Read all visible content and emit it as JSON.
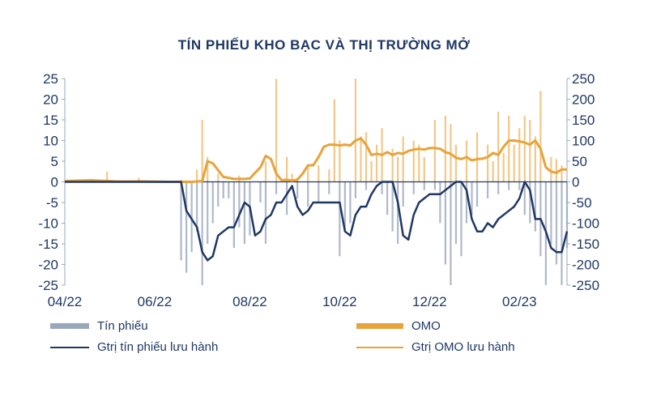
{
  "chart_data": {
    "type": "bar",
    "title": "TÍN PHIẾU KHO BẠC VÀ THỊ TRƯỜNG MỞ",
    "xlabel": "",
    "ylabel_left": "",
    "ylabel_right": "",
    "x_tick_labels": [
      "04/22",
      "06/22",
      "08/22",
      "10/22",
      "12/22",
      "02/23"
    ],
    "left_axis": {
      "ylim": [
        -25,
        25
      ],
      "ticks": [
        25,
        20,
        15,
        10,
        5,
        0,
        -5,
        -10,
        -15,
        -20,
        -25
      ]
    },
    "right_axis": {
      "ylim": [
        -250,
        250
      ],
      "ticks": [
        250,
        200,
        150,
        100,
        50,
        0,
        -50,
        -100,
        -150,
        -200,
        -250
      ]
    },
    "grid": false,
    "legend_position": "bottom",
    "colors": {
      "tin_phieu_bar": "#9aa8bd",
      "omo_bar": "#e8a33a",
      "tin_phieu_line": "#1f3864",
      "omo_line": "#e8a33a",
      "axis_text": "#1f3864"
    },
    "series": [
      {
        "name": "Tín phiếu",
        "kind": "bar",
        "axis": "left",
        "x_week": [
          0,
          5,
          10,
          15,
          20,
          22,
          23,
          24,
          25,
          26,
          27,
          28,
          29,
          30,
          31,
          32,
          33,
          34,
          35,
          37,
          38,
          40,
          42,
          44,
          46,
          48,
          50,
          52,
          53,
          54,
          55,
          57,
          60,
          61,
          62,
          63,
          64,
          66,
          68,
          70,
          71,
          72,
          73,
          74,
          75,
          76,
          77,
          78,
          80,
          82,
          84,
          86,
          87,
          88,
          89,
          90,
          91,
          92,
          93,
          94,
          95
        ],
        "values": [
          0,
          0,
          0,
          0,
          0,
          -19,
          -22,
          -17,
          -12,
          -25,
          -15,
          -10,
          -6,
          -4,
          -4,
          -16,
          -11,
          -15,
          -13,
          -5,
          -15,
          -3,
          -8,
          -4,
          -6,
          -5,
          -3,
          -18,
          -12,
          -10,
          -4,
          -2,
          -3,
          -8,
          -12,
          -15,
          -6,
          -3,
          -2,
          -2,
          -10,
          -20,
          -25,
          -15,
          -18,
          -10,
          -8,
          -6,
          -4,
          -3,
          -2,
          -2,
          -8,
          -10,
          -12,
          -18,
          -25,
          -15,
          -20,
          -25,
          -16
        ]
      },
      {
        "name": "OMO",
        "kind": "bar",
        "axis": "right",
        "x_week": [
          3,
          8,
          14,
          22,
          25,
          26,
          27,
          29,
          33,
          38,
          40,
          42,
          43,
          44,
          46,
          48,
          50,
          51,
          52,
          55,
          56,
          57,
          58,
          59,
          60,
          62,
          63,
          64,
          66,
          67,
          68,
          70,
          72,
          73,
          74,
          76,
          78,
          80,
          81,
          82,
          83,
          84,
          85,
          86,
          87,
          88,
          89,
          90,
          92,
          93,
          94
        ],
        "values": [
          5,
          25,
          10,
          5,
          30,
          150,
          60,
          20,
          15,
          50,
          250,
          60,
          20,
          10,
          40,
          40,
          30,
          200,
          100,
          250,
          110,
          120,
          50,
          90,
          130,
          80,
          60,
          110,
          100,
          90,
          60,
          150,
          160,
          140,
          90,
          100,
          120,
          90,
          50,
          170,
          70,
          160,
          90,
          130,
          160,
          150,
          110,
          220,
          60,
          55,
          40
        ]
      },
      {
        "name": "Gtrị tín phiếu lưu hành",
        "kind": "line",
        "axis": "left",
        "x_week": [
          0,
          5,
          10,
          15,
          20,
          22,
          23,
          24,
          25,
          26,
          27,
          28,
          29,
          30,
          31,
          32,
          33,
          34,
          35,
          36,
          37,
          38,
          39,
          40,
          41,
          42,
          43,
          44,
          45,
          46,
          47,
          48,
          49,
          50,
          51,
          52,
          53,
          54,
          55,
          56,
          57,
          58,
          59,
          60,
          61,
          62,
          63,
          64,
          65,
          66,
          67,
          68,
          69,
          70,
          71,
          72,
          73,
          74,
          75,
          76,
          77,
          78,
          79,
          80,
          81,
          82,
          83,
          84,
          85,
          86,
          87,
          88,
          89,
          90,
          91,
          92,
          93,
          94,
          95
        ],
        "values": [
          0,
          0,
          0,
          0,
          0,
          0,
          -7,
          -9,
          -11,
          -17,
          -19,
          -18,
          -13,
          -12,
          -11,
          -11,
          -8,
          -5,
          -6,
          -13,
          -12,
          -9,
          -8,
          -5,
          -5,
          -3,
          -1,
          -6,
          -8,
          -7,
          -5,
          -5,
          -5,
          -5,
          -5,
          -5,
          -12,
          -13,
          -8,
          -6,
          -6,
          -3,
          -1,
          0,
          0,
          0,
          -5,
          -13,
          -14,
          -8,
          -5,
          -4,
          -3,
          -3,
          -3,
          -2,
          -1,
          0,
          0,
          -2,
          -9,
          -12,
          -12,
          -10,
          -11,
          -9,
          -8,
          -7,
          -6,
          -4,
          0,
          -2,
          -9,
          -9,
          -12,
          -16,
          -17,
          -17,
          -12
        ]
      },
      {
        "name": "Gtrị OMO lưu hành",
        "kind": "line",
        "axis": "right",
        "x_week": [
          0,
          5,
          10,
          15,
          20,
          22,
          24,
          26,
          27,
          28,
          30,
          32,
          34,
          35,
          36,
          37,
          38,
          39,
          40,
          41,
          42,
          43,
          44,
          45,
          46,
          47,
          48,
          49,
          50,
          51,
          52,
          53,
          54,
          55,
          56,
          57,
          58,
          59,
          60,
          61,
          62,
          63,
          64,
          65,
          66,
          67,
          68,
          69,
          70,
          71,
          72,
          73,
          74,
          75,
          76,
          77,
          78,
          79,
          80,
          81,
          82,
          83,
          84,
          85,
          86,
          87,
          88,
          89,
          90,
          91,
          92,
          93,
          94,
          95
        ],
        "values": [
          2,
          4,
          1,
          1,
          0,
          0,
          0,
          2,
          50,
          45,
          12,
          7,
          7,
          8,
          22,
          35,
          63,
          55,
          20,
          4,
          5,
          3,
          5,
          20,
          40,
          40,
          60,
          85,
          90,
          90,
          88,
          90,
          88,
          100,
          105,
          90,
          65,
          68,
          65,
          72,
          65,
          70,
          68,
          75,
          78,
          80,
          78,
          82,
          82,
          80,
          72,
          68,
          58,
          55,
          60,
          52,
          55,
          56,
          60,
          70,
          65,
          85,
          100,
          100,
          98,
          95,
          90,
          100,
          80,
          35,
          25,
          22,
          30,
          30
        ]
      }
    ]
  },
  "legend": {
    "tin_phieu": "Tín phiếu",
    "omo": "OMO",
    "tin_phieu_luu_hanh": "Gtrị tín phiếu lưu hành",
    "omo_luu_hanh": "Gtrị OMO lưu hành"
  }
}
